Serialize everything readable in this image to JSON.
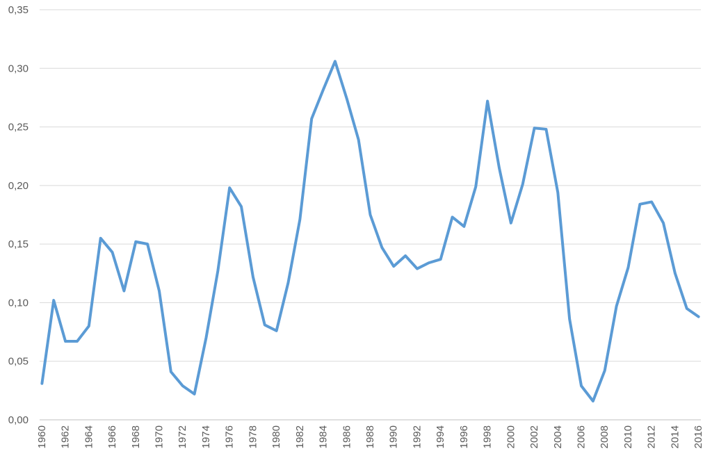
{
  "chart_data": {
    "type": "line",
    "title": "",
    "xlabel": "",
    "ylabel": "",
    "ylim": [
      0,
      0.35
    ],
    "y_ticks": [
      "0,00",
      "0,05",
      "0,10",
      "0,15",
      "0,20",
      "0,25",
      "0,30",
      "0,35"
    ],
    "x_tick_labels": [
      "1960",
      "1962",
      "1964",
      "1966",
      "1968",
      "1970",
      "1972",
      "1974",
      "1976",
      "1978",
      "1980",
      "1982",
      "1984",
      "1986",
      "1988",
      "1990",
      "1992",
      "1994",
      "1996",
      "1998",
      "2000",
      "2002",
      "2004",
      "2006",
      "2008",
      "2010",
      "2012",
      "2014",
      "2016"
    ],
    "grid": true,
    "legend": "none",
    "colors": {
      "series": "#5b9bd5",
      "grid": "#d9d9d9",
      "tick_text": "#595959"
    },
    "x": [
      1960,
      1961,
      1962,
      1963,
      1964,
      1965,
      1966,
      1967,
      1968,
      1969,
      1970,
      1971,
      1972,
      1973,
      1974,
      1975,
      1976,
      1977,
      1978,
      1979,
      1980,
      1981,
      1982,
      1983,
      1984,
      1985,
      1986,
      1987,
      1988,
      1989,
      1990,
      1991,
      1992,
      1993,
      1994,
      1995,
      1996,
      1997,
      1998,
      1999,
      2000,
      2001,
      2002,
      2003,
      2004,
      2005,
      2006,
      2007,
      2008,
      2009,
      2010,
      2011,
      2012,
      2013,
      2014,
      2015,
      2016
    ],
    "series": [
      {
        "values": [
          0.031,
          0.102,
          0.067,
          0.067,
          0.08,
          0.155,
          0.143,
          0.11,
          0.152,
          0.15,
          0.11,
          0.041,
          0.029,
          0.022,
          0.07,
          0.127,
          0.198,
          0.182,
          0.122,
          0.081,
          0.076,
          0.117,
          0.171,
          0.257,
          0.282,
          0.306,
          0.274,
          0.239,
          0.175,
          0.147,
          0.131,
          0.14,
          0.129,
          0.134,
          0.137,
          0.173,
          0.165,
          0.199,
          0.272,
          0.215,
          0.168,
          0.201,
          0.249,
          0.248,
          0.194,
          0.086,
          0.029,
          0.016,
          0.042,
          0.097,
          0.13,
          0.184,
          0.186,
          0.168,
          0.125,
          0.095,
          0.088
        ]
      }
    ]
  }
}
